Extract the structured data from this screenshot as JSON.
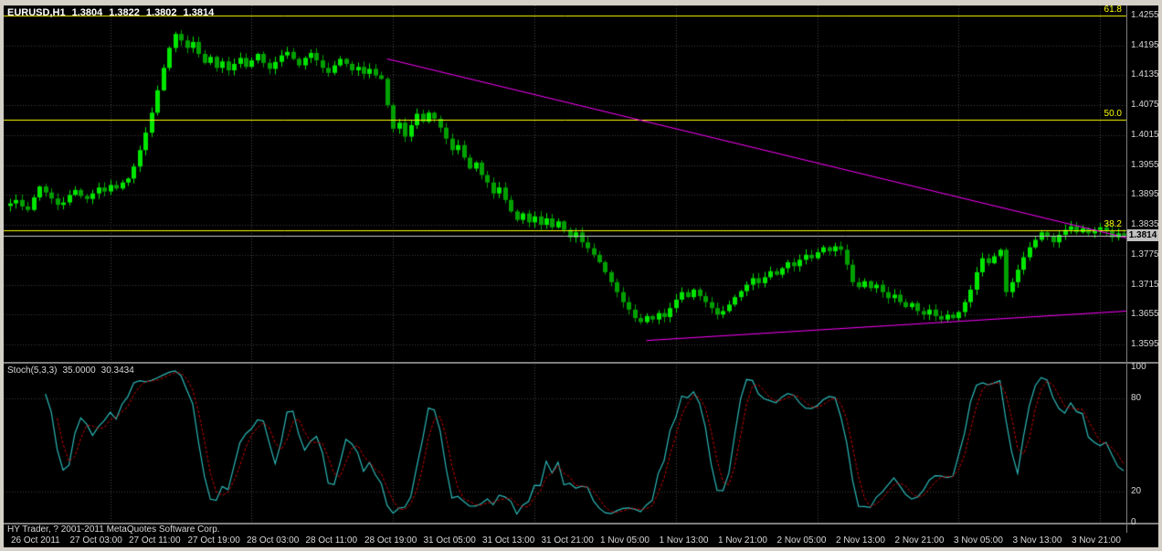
{
  "window": {
    "title": {
      "symbol": "EURUSD,H1",
      "open": "1.3804",
      "high": "1.3822",
      "low": "1.3802",
      "close": "1.3814"
    },
    "copyright": "HY Trader, ? 2001-2011 MetaQuotes Software Corp."
  },
  "colors": {
    "background": "#000000",
    "frame": "#D4D0C8",
    "axis_text": "#D8D8D8",
    "grid": "#3C3C3C",
    "separator": "#4A4A4A",
    "bull": "#00E600",
    "bear": "#00A000",
    "fib": "#FFFF00",
    "trendline": "#FF00FF",
    "stoch_main": "#2CB8B8",
    "stoch_signal": "#D00000",
    "price_line": "#C8C8C8",
    "price_tag_bg": "#C0C0C0"
  },
  "price_axis": {
    "labels": [
      "1.4255",
      "1.4195",
      "1.4135",
      "1.4075",
      "1.4015",
      "1.3955",
      "1.3895",
      "1.3835",
      "1.3775",
      "1.3715",
      "1.3655",
      "1.3595"
    ],
    "current_price": "1.3814"
  },
  "time_axis": {
    "labels": [
      "26 Oct 2011",
      "27 Oct 03:00",
      "27 Oct 11:00",
      "27 Oct 19:00",
      "28 Oct 03:00",
      "28 Oct 11:00",
      "28 Oct 19:00",
      "31 Oct 05:00",
      "31 Oct 13:00",
      "31 Oct 21:00",
      "1 Nov 05:00",
      "1 Nov 13:00",
      "1 Nov 21:00",
      "2 Nov 05:00",
      "2 Nov 13:00",
      "2 Nov 21:00",
      "3 Nov 05:00",
      "3 Nov 13:00",
      "3 Nov 21:00"
    ]
  },
  "indicator": {
    "name": "Stoch(5,3,3)",
    "main_value": "35.0000",
    "signal_value": "30.3434",
    "axis_labels": [
      "100",
      "80",
      "20",
      "0"
    ],
    "axis_values": [
      100,
      80,
      20,
      0
    ],
    "levels": [
      80,
      20
    ]
  },
  "fibonacci": {
    "levels": [
      {
        "label": "61.8",
        "price": 1.4255
      },
      {
        "label": "50.0",
        "price": 1.4046
      },
      {
        "label": "38.2",
        "price": 1.3824
      }
    ]
  },
  "trendlines": [
    {
      "i1": 64,
      "p1": 1.4168,
      "i2": 190,
      "p2": 1.3809
    },
    {
      "i1": 108,
      "p1": 1.3603,
      "i2": 190,
      "p2": 1.3662
    }
  ],
  "chart_data": {
    "type": "candlestick",
    "symbol": "EURUSD",
    "timeframe": "H1",
    "title": "EURUSD,H1 1.3804 1.3822 1.3802 1.3814",
    "price_min": 1.3595,
    "price_max": 1.4255,
    "price_step": 0.006,
    "day_separator_indices": [
      17,
      41,
      65,
      89,
      113,
      137,
      161,
      185
    ],
    "closes": [
      1.3878,
      1.3885,
      1.3872,
      1.3865,
      1.389,
      1.3912,
      1.39,
      1.3888,
      1.3875,
      1.388,
      1.3895,
      1.3905,
      1.3893,
      1.3887,
      1.3898,
      1.391,
      1.3902,
      1.3915,
      1.3908,
      1.392,
      1.3928,
      1.3952,
      1.3985,
      1.402,
      1.406,
      1.4105,
      1.415,
      1.419,
      1.4218,
      1.4205,
      1.419,
      1.4202,
      1.4178,
      1.416,
      1.4172,
      1.415,
      1.4163,
      1.4145,
      1.4158,
      1.417,
      1.4152,
      1.4165,
      1.4178,
      1.416,
      1.4148,
      1.4162,
      1.4175,
      1.4182,
      1.4168,
      1.4155,
      1.417,
      1.418,
      1.4165,
      1.415,
      1.414,
      1.4155,
      1.4168,
      1.4158,
      1.4145,
      1.4152,
      1.4138,
      1.4148,
      1.4135,
      1.4128,
      1.4075,
      1.4028,
      1.404,
      1.4012,
      1.4035,
      1.4058,
      1.4042,
      1.406,
      1.4048,
      1.403,
      1.4008,
      1.3985,
      1.3995,
      1.397,
      1.3948,
      1.396,
      1.3935,
      1.392,
      1.3898,
      1.391,
      1.3885,
      1.3862,
      1.3845,
      1.3858,
      1.384,
      1.3852,
      1.3835,
      1.3848,
      1.383,
      1.3842,
      1.3825,
      1.381,
      1.382,
      1.38,
      1.3788,
      1.3775,
      1.376,
      1.374,
      1.372,
      1.37,
      1.368,
      1.3665,
      1.3648,
      1.364,
      1.3652,
      1.3645,
      1.3658,
      1.365,
      1.3668,
      1.3685,
      1.37,
      1.369,
      1.3705,
      1.3692,
      1.368,
      1.3668,
      1.3655,
      1.3662,
      1.3675,
      1.369,
      1.3702,
      1.3715,
      1.3728,
      1.3718,
      1.373,
      1.3742,
      1.3735,
      1.3748,
      1.376,
      1.3752,
      1.3765,
      1.3775,
      1.3768,
      1.378,
      1.379,
      1.3782,
      1.3792,
      1.3785,
      1.3755,
      1.372,
      1.371,
      1.3722,
      1.3708,
      1.3715,
      1.37,
      1.3688,
      1.3695,
      1.368,
      1.367,
      1.3678,
      1.3662,
      1.3655,
      1.3665,
      1.3652,
      1.3645,
      1.3655,
      1.3648,
      1.366,
      1.368,
      1.3705,
      1.374,
      1.3768,
      1.3758,
      1.3772,
      1.3785,
      1.37,
      1.372,
      1.3745,
      1.377,
      1.379,
      1.3805,
      1.382,
      1.3812,
      1.38,
      1.3815,
      1.3825,
      1.3832,
      1.382,
      1.3828,
      1.3818,
      1.3825,
      1.383,
      1.3822,
      1.381,
      1.3818,
      1.3814
    ],
    "indicator": {
      "type": "stochastic",
      "params": [
        5,
        3,
        3
      ],
      "range": [
        0,
        100
      ],
      "levels": [
        20,
        80
      ]
    }
  }
}
